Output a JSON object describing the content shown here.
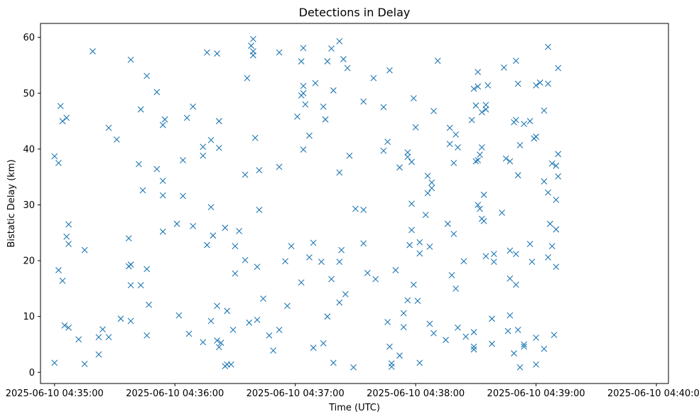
{
  "chart_data": {
    "type": "scatter",
    "title": "Detections in Delay",
    "xlabel": "Time (UTC)",
    "ylabel": "Bistatic Delay (km)",
    "marker": "x",
    "color": "#1f77b4",
    "grid": false,
    "x_is_time": true,
    "xlim": [
      "2025-06-10 04:34:53",
      "2025-06-10 04:40:06"
    ],
    "ylim": [
      -2,
      62.5
    ],
    "x_ticks": [
      "2025-06-10 04:35:00",
      "2025-06-10 04:36:00",
      "2025-06-10 04:37:00",
      "2025-06-10 04:38:00",
      "2025-06-10 04:39:00",
      "2025-06-10 04:40:00"
    ],
    "y_ticks": [
      0,
      10,
      20,
      30,
      40,
      50,
      60
    ],
    "points": [
      {
        "x": "2025-06-10 04:35:00",
        "y": 38.7
      },
      {
        "x": "2025-06-10 04:35:00",
        "y": 1.7
      },
      {
        "x": "2025-06-10 04:35:02",
        "y": 37.5
      },
      {
        "x": "2025-06-10 04:35:02",
        "y": 18.3
      },
      {
        "x": "2025-06-10 04:35:03",
        "y": 47.7
      },
      {
        "x": "2025-06-10 04:35:04",
        "y": 45.0
      },
      {
        "x": "2025-06-10 04:35:04",
        "y": 16.4
      },
      {
        "x": "2025-06-10 04:35:05",
        "y": 8.4
      },
      {
        "x": "2025-06-10 04:35:06",
        "y": 45.6
      },
      {
        "x": "2025-06-10 04:35:06",
        "y": 24.3
      },
      {
        "x": "2025-06-10 04:35:07",
        "y": 23.0
      },
      {
        "x": "2025-06-10 04:35:07",
        "y": 26.5
      },
      {
        "x": "2025-06-10 04:35:07",
        "y": 8.0
      },
      {
        "x": "2025-06-10 04:35:12",
        "y": 5.9
      },
      {
        "x": "2025-06-10 04:35:15",
        "y": 21.9
      },
      {
        "x": "2025-06-10 04:35:15",
        "y": 1.5
      },
      {
        "x": "2025-06-10 04:35:19",
        "y": 57.5
      },
      {
        "x": "2025-06-10 04:35:22",
        "y": 6.3
      },
      {
        "x": "2025-06-10 04:35:22",
        "y": 3.2
      },
      {
        "x": "2025-06-10 04:35:24",
        "y": 7.7
      },
      {
        "x": "2025-06-10 04:35:27",
        "y": 43.8
      },
      {
        "x": "2025-06-10 04:35:27",
        "y": 6.3
      },
      {
        "x": "2025-06-10 04:35:31",
        "y": 41.7
      },
      {
        "x": "2025-06-10 04:35:33",
        "y": 9.6
      },
      {
        "x": "2025-06-10 04:35:37",
        "y": 24.0
      },
      {
        "x": "2025-06-10 04:35:37",
        "y": 19.0
      },
      {
        "x": "2025-06-10 04:35:38",
        "y": 56.0
      },
      {
        "x": "2025-06-10 04:35:38",
        "y": 19.3
      },
      {
        "x": "2025-06-10 04:35:38",
        "y": 15.6
      },
      {
        "x": "2025-06-10 04:35:38",
        "y": 9.2
      },
      {
        "x": "2025-06-10 04:35:42",
        "y": 37.3
      },
      {
        "x": "2025-06-10 04:35:43",
        "y": 47.1
      },
      {
        "x": "2025-06-10 04:35:43",
        "y": 15.6
      },
      {
        "x": "2025-06-10 04:35:44",
        "y": 32.6
      },
      {
        "x": "2025-06-10 04:35:46",
        "y": 53.1
      },
      {
        "x": "2025-06-10 04:35:46",
        "y": 18.5
      },
      {
        "x": "2025-06-10 04:35:46",
        "y": 6.6
      },
      {
        "x": "2025-06-10 04:35:47",
        "y": 12.1
      },
      {
        "x": "2025-06-10 04:35:51",
        "y": 50.2
      },
      {
        "x": "2025-06-10 04:35:51",
        "y": 36.4
      },
      {
        "x": "2025-06-10 04:35:54",
        "y": 44.3
      },
      {
        "x": "2025-06-10 04:35:54",
        "y": 34.3
      },
      {
        "x": "2025-06-10 04:35:54",
        "y": 31.7
      },
      {
        "x": "2025-06-10 04:35:54",
        "y": 25.2
      },
      {
        "x": "2025-06-10 04:35:55",
        "y": 45.3
      },
      {
        "x": "2025-06-10 04:36:01",
        "y": 26.6
      },
      {
        "x": "2025-06-10 04:36:02",
        "y": 10.2
      },
      {
        "x": "2025-06-10 04:36:04",
        "y": 38.0
      },
      {
        "x": "2025-06-10 04:36:04",
        "y": 31.6
      },
      {
        "x": "2025-06-10 04:36:06",
        "y": 45.6
      },
      {
        "x": "2025-06-10 04:36:07",
        "y": 6.9
      },
      {
        "x": "2025-06-10 04:36:09",
        "y": 47.6
      },
      {
        "x": "2025-06-10 04:36:09",
        "y": 26.2
      },
      {
        "x": "2025-06-10 04:36:14",
        "y": 40.4
      },
      {
        "x": "2025-06-10 04:36:14",
        "y": 38.8
      },
      {
        "x": "2025-06-10 04:36:14",
        "y": 5.4
      },
      {
        "x": "2025-06-10 04:36:16",
        "y": 57.3
      },
      {
        "x": "2025-06-10 04:36:16",
        "y": 22.8
      },
      {
        "x": "2025-06-10 04:36:18",
        "y": 41.6
      },
      {
        "x": "2025-06-10 04:36:18",
        "y": 29.6
      },
      {
        "x": "2025-06-10 04:36:18",
        "y": 9.2
      },
      {
        "x": "2025-06-10 04:36:19",
        "y": 24.5
      },
      {
        "x": "2025-06-10 04:36:21",
        "y": 57.1
      },
      {
        "x": "2025-06-10 04:36:21",
        "y": 11.9
      },
      {
        "x": "2025-06-10 04:36:21",
        "y": 5.7
      },
      {
        "x": "2025-06-10 04:36:22",
        "y": 45.0
      },
      {
        "x": "2025-06-10 04:36:22",
        "y": 40.2
      },
      {
        "x": "2025-06-10 04:36:22",
        "y": 4.5
      },
      {
        "x": "2025-06-10 04:36:23",
        "y": 5.3
      },
      {
        "x": "2025-06-10 04:36:25",
        "y": 25.9
      },
      {
        "x": "2025-06-10 04:36:25",
        "y": 1.1
      },
      {
        "x": "2025-06-10 04:36:26",
        "y": 11.0
      },
      {
        "x": "2025-06-10 04:36:26",
        "y": 1.4
      },
      {
        "x": "2025-06-10 04:36:28",
        "y": 1.4
      },
      {
        "x": "2025-06-10 04:36:29",
        "y": 7.6
      },
      {
        "x": "2025-06-10 04:36:30",
        "y": 22.6
      },
      {
        "x": "2025-06-10 04:36:30",
        "y": 17.7
      },
      {
        "x": "2025-06-10 04:36:32",
        "y": 25.3
      },
      {
        "x": "2025-06-10 04:36:35",
        "y": 35.4
      },
      {
        "x": "2025-06-10 04:36:35",
        "y": 20.1
      },
      {
        "x": "2025-06-10 04:36:36",
        "y": 52.7
      },
      {
        "x": "2025-06-10 04:36:37",
        "y": 8.9
      },
      {
        "x": "2025-06-10 04:36:38",
        "y": 58.5
      },
      {
        "x": "2025-06-10 04:36:39",
        "y": 59.7
      },
      {
        "x": "2025-06-10 04:36:39",
        "y": 57.5
      },
      {
        "x": "2025-06-10 04:36:39",
        "y": 56.8
      },
      {
        "x": "2025-06-10 04:36:40",
        "y": 42.0
      },
      {
        "x": "2025-06-10 04:36:41",
        "y": 18.9
      },
      {
        "x": "2025-06-10 04:36:41",
        "y": 9.4
      },
      {
        "x": "2025-06-10 04:36:42",
        "y": 36.2
      },
      {
        "x": "2025-06-10 04:36:42",
        "y": 29.1
      },
      {
        "x": "2025-06-10 04:36:44",
        "y": 13.2
      },
      {
        "x": "2025-06-10 04:36:47",
        "y": 6.6
      },
      {
        "x": "2025-06-10 04:36:49",
        "y": 3.9
      },
      {
        "x": "2025-06-10 04:36:52",
        "y": 57.3
      },
      {
        "x": "2025-06-10 04:36:52",
        "y": 36.8
      },
      {
        "x": "2025-06-10 04:36:52",
        "y": 7.6
      },
      {
        "x": "2025-06-10 04:36:55",
        "y": 19.9
      },
      {
        "x": "2025-06-10 04:36:56",
        "y": 11.9
      },
      {
        "x": "2025-06-10 04:36:58",
        "y": 22.6
      },
      {
        "x": "2025-06-10 04:37:01",
        "y": 45.8
      },
      {
        "x": "2025-06-10 04:37:03",
        "y": 55.7
      },
      {
        "x": "2025-06-10 04:37:03",
        "y": 49.6
      },
      {
        "x": "2025-06-10 04:37:03",
        "y": 16.1
      },
      {
        "x": "2025-06-10 04:37:04",
        "y": 58.1
      },
      {
        "x": "2025-06-10 04:37:04",
        "y": 50.0
      },
      {
        "x": "2025-06-10 04:37:04",
        "y": 39.9
      },
      {
        "x": "2025-06-10 04:37:04",
        "y": 51.3
      },
      {
        "x": "2025-06-10 04:37:05",
        "y": 48.0
      },
      {
        "x": "2025-06-10 04:37:07",
        "y": 42.4
      },
      {
        "x": "2025-06-10 04:37:07",
        "y": 20.6
      },
      {
        "x": "2025-06-10 04:37:09",
        "y": 23.2
      },
      {
        "x": "2025-06-10 04:37:09",
        "y": 4.4
      },
      {
        "x": "2025-06-10 04:37:10",
        "y": 51.8
      },
      {
        "x": "2025-06-10 04:37:13",
        "y": 19.8
      },
      {
        "x": "2025-06-10 04:37:14",
        "y": 47.6
      },
      {
        "x": "2025-06-10 04:37:14",
        "y": 5.2
      },
      {
        "x": "2025-06-10 04:37:15",
        "y": 45.3
      },
      {
        "x": "2025-06-10 04:37:16",
        "y": 55.7
      },
      {
        "x": "2025-06-10 04:37:16",
        "y": 10.0
      },
      {
        "x": "2025-06-10 04:37:18",
        "y": 58.0
      },
      {
        "x": "2025-06-10 04:37:18",
        "y": 16.7
      },
      {
        "x": "2025-06-10 04:37:19",
        "y": 50.5
      },
      {
        "x": "2025-06-10 04:37:19",
        "y": 1.7
      },
      {
        "x": "2025-06-10 04:37:22",
        "y": 59.3
      },
      {
        "x": "2025-06-10 04:37:22",
        "y": 19.8
      },
      {
        "x": "2025-06-10 04:37:22",
        "y": 12.5
      },
      {
        "x": "2025-06-10 04:37:22",
        "y": 35.8
      },
      {
        "x": "2025-06-10 04:37:23",
        "y": 21.9
      },
      {
        "x": "2025-06-10 04:37:24",
        "y": 56.1
      },
      {
        "x": "2025-06-10 04:37:25",
        "y": 14.0
      },
      {
        "x": "2025-06-10 04:37:26",
        "y": 54.5
      },
      {
        "x": "2025-06-10 04:37:27",
        "y": 38.8
      },
      {
        "x": "2025-06-10 04:37:29",
        "y": 0.9
      },
      {
        "x": "2025-06-10 04:37:30",
        "y": 29.3
      },
      {
        "x": "2025-06-10 04:37:34",
        "y": 48.5
      },
      {
        "x": "2025-06-10 04:37:34",
        "y": 29.1
      },
      {
        "x": "2025-06-10 04:37:34",
        "y": 23.1
      },
      {
        "x": "2025-06-10 04:37:36",
        "y": 17.8
      },
      {
        "x": "2025-06-10 04:37:39",
        "y": 52.7
      },
      {
        "x": "2025-06-10 04:37:40",
        "y": 16.7
      },
      {
        "x": "2025-06-10 04:37:44",
        "y": 47.5
      },
      {
        "x": "2025-06-10 04:37:44",
        "y": 39.7
      },
      {
        "x": "2025-06-10 04:37:46",
        "y": 41.3
      },
      {
        "x": "2025-06-10 04:37:46",
        "y": 9.0
      },
      {
        "x": "2025-06-10 04:37:47",
        "y": 54.1
      },
      {
        "x": "2025-06-10 04:37:47",
        "y": 4.6
      },
      {
        "x": "2025-06-10 04:37:48",
        "y": 1.6
      },
      {
        "x": "2025-06-10 04:37:48",
        "y": 1.0
      },
      {
        "x": "2025-06-10 04:37:50",
        "y": 18.3
      },
      {
        "x": "2025-06-10 04:37:52",
        "y": 36.7
      },
      {
        "x": "2025-06-10 04:37:52",
        "y": 3.0
      },
      {
        "x": "2025-06-10 04:37:54",
        "y": 10.6
      },
      {
        "x": "2025-06-10 04:37:54",
        "y": 8.1
      },
      {
        "x": "2025-06-10 04:37:56",
        "y": 39.4
      },
      {
        "x": "2025-06-10 04:37:56",
        "y": 38.6
      },
      {
        "x": "2025-06-10 04:37:56",
        "y": 12.9
      },
      {
        "x": "2025-06-10 04:37:57",
        "y": 22.8
      },
      {
        "x": "2025-06-10 04:37:58",
        "y": 37.7
      },
      {
        "x": "2025-06-10 04:37:58",
        "y": 30.2
      },
      {
        "x": "2025-06-10 04:37:58",
        "y": 25.5
      },
      {
        "x": "2025-06-10 04:37:59",
        "y": 49.1
      },
      {
        "x": "2025-06-10 04:37:59",
        "y": 15.7
      },
      {
        "x": "2025-06-10 04:38:00",
        "y": 43.9
      },
      {
        "x": "2025-06-10 04:38:01",
        "y": 12.8
      },
      {
        "x": "2025-06-10 04:38:02",
        "y": 23.3
      },
      {
        "x": "2025-06-10 04:38:02",
        "y": 21.3
      },
      {
        "x": "2025-06-10 04:38:02",
        "y": 1.7
      },
      {
        "x": "2025-06-10 04:38:05",
        "y": 28.2
      },
      {
        "x": "2025-06-10 04:38:06",
        "y": 35.2
      },
      {
        "x": "2025-06-10 04:38:06",
        "y": 32.1
      },
      {
        "x": "2025-06-10 04:38:07",
        "y": 22.5
      },
      {
        "x": "2025-06-10 04:38:07",
        "y": 8.7
      },
      {
        "x": "2025-06-10 04:38:08",
        "y": 34.0
      },
      {
        "x": "2025-06-10 04:38:08",
        "y": 33.0
      },
      {
        "x": "2025-06-10 04:38:09",
        "y": 46.8
      },
      {
        "x": "2025-06-10 04:38:09",
        "y": 7.0
      },
      {
        "x": "2025-06-10 04:38:11",
        "y": 55.8
      },
      {
        "x": "2025-06-10 04:38:15",
        "y": 5.8
      },
      {
        "x": "2025-06-10 04:38:16",
        "y": 26.6
      },
      {
        "x": "2025-06-10 04:38:17",
        "y": 43.8
      },
      {
        "x": "2025-06-10 04:38:17",
        "y": 40.9
      },
      {
        "x": "2025-06-10 04:38:18",
        "y": 17.4
      },
      {
        "x": "2025-06-10 04:38:19",
        "y": 37.5
      },
      {
        "x": "2025-06-10 04:38:19",
        "y": 24.8
      },
      {
        "x": "2025-06-10 04:38:20",
        "y": 42.6
      },
      {
        "x": "2025-06-10 04:38:20",
        "y": 15.0
      },
      {
        "x": "2025-06-10 04:38:21",
        "y": 40.3
      },
      {
        "x": "2025-06-10 04:38:21",
        "y": 8.0
      },
      {
        "x": "2025-06-10 04:38:24",
        "y": 19.9
      },
      {
        "x": "2025-06-10 04:38:25",
        "y": 6.4
      },
      {
        "x": "2025-06-10 04:38:28",
        "y": 45.2
      },
      {
        "x": "2025-06-10 04:38:29",
        "y": 50.8
      },
      {
        "x": "2025-06-10 04:38:29",
        "y": 7.2
      },
      {
        "x": "2025-06-10 04:38:29",
        "y": 4.6
      },
      {
        "x": "2025-06-10 04:38:29",
        "y": 4.1
      },
      {
        "x": "2025-06-10 04:38:30",
        "y": 47.8
      },
      {
        "x": "2025-06-10 04:38:30",
        "y": 37.8
      },
      {
        "x": "2025-06-10 04:38:31",
        "y": 51.2
      },
      {
        "x": "2025-06-10 04:38:31",
        "y": 38.0
      },
      {
        "x": "2025-06-10 04:38:31",
        "y": 30.0
      },
      {
        "x": "2025-06-10 04:38:31",
        "y": 53.8
      },
      {
        "x": "2025-06-10 04:38:32",
        "y": 39.0
      },
      {
        "x": "2025-06-10 04:38:32",
        "y": 29.3
      },
      {
        "x": "2025-06-10 04:38:33",
        "y": 46.6
      },
      {
        "x": "2025-06-10 04:38:33",
        "y": 40.3
      },
      {
        "x": "2025-06-10 04:38:33",
        "y": 27.5
      },
      {
        "x": "2025-06-10 04:38:34",
        "y": 31.8
      },
      {
        "x": "2025-06-10 04:38:34",
        "y": 27.1
      },
      {
        "x": "2025-06-10 04:38:35",
        "y": 47.9
      },
      {
        "x": "2025-06-10 04:38:35",
        "y": 47.1
      },
      {
        "x": "2025-06-10 04:38:35",
        "y": 20.8
      },
      {
        "x": "2025-06-10 04:38:36",
        "y": 51.4
      },
      {
        "x": "2025-06-10 04:38:38",
        "y": 9.6
      },
      {
        "x": "2025-06-10 04:38:38",
        "y": 5.1
      },
      {
        "x": "2025-06-10 04:38:39",
        "y": 21.2
      },
      {
        "x": "2025-06-10 04:38:39",
        "y": 19.8
      },
      {
        "x": "2025-06-10 04:38:43",
        "y": 28.6
      },
      {
        "x": "2025-06-10 04:38:44",
        "y": 54.6
      },
      {
        "x": "2025-06-10 04:38:45",
        "y": 38.3
      },
      {
        "x": "2025-06-10 04:38:46",
        "y": 7.4
      },
      {
        "x": "2025-06-10 04:38:47",
        "y": 37.8
      },
      {
        "x": "2025-06-10 04:38:47",
        "y": 21.8
      },
      {
        "x": "2025-06-10 04:38:47",
        "y": 16.8
      },
      {
        "x": "2025-06-10 04:38:47",
        "y": 10.2
      },
      {
        "x": "2025-06-10 04:38:49",
        "y": 44.8
      },
      {
        "x": "2025-06-10 04:38:49",
        "y": 3.4
      },
      {
        "x": "2025-06-10 04:38:50",
        "y": 55.8
      },
      {
        "x": "2025-06-10 04:38:50",
        "y": 45.2
      },
      {
        "x": "2025-06-10 04:38:50",
        "y": 21.2
      },
      {
        "x": "2025-06-10 04:38:50",
        "y": 15.7
      },
      {
        "x": "2025-06-10 04:38:51",
        "y": 51.7
      },
      {
        "x": "2025-06-10 04:38:51",
        "y": 35.3
      },
      {
        "x": "2025-06-10 04:38:51",
        "y": 7.6
      },
      {
        "x": "2025-06-10 04:38:52",
        "y": 40.7
      },
      {
        "x": "2025-06-10 04:38:52",
        "y": 0.9
      },
      {
        "x": "2025-06-10 04:38:54",
        "y": 44.5
      },
      {
        "x": "2025-06-10 04:38:54",
        "y": 4.6
      },
      {
        "x": "2025-06-10 04:38:54",
        "y": 5.0
      },
      {
        "x": "2025-06-10 04:38:57",
        "y": 45.0
      },
      {
        "x": "2025-06-10 04:38:57",
        "y": 23.0
      },
      {
        "x": "2025-06-10 04:38:58",
        "y": 19.8
      },
      {
        "x": "2025-06-10 04:38:59",
        "y": 41.9
      },
      {
        "x": "2025-06-10 04:39:00",
        "y": 51.4
      },
      {
        "x": "2025-06-10 04:39:00",
        "y": 42.2
      },
      {
        "x": "2025-06-10 04:39:00",
        "y": 6.2
      },
      {
        "x": "2025-06-10 04:39:00",
        "y": 1.4
      },
      {
        "x": "2025-06-10 04:39:02",
        "y": 51.9
      },
      {
        "x": "2025-06-10 04:39:04",
        "y": 46.9
      },
      {
        "x": "2025-06-10 04:39:04",
        "y": 34.2
      },
      {
        "x": "2025-06-10 04:39:04",
        "y": 4.2
      },
      {
        "x": "2025-06-10 04:39:06",
        "y": 58.3
      },
      {
        "x": "2025-06-10 04:39:06",
        "y": 51.7
      },
      {
        "x": "2025-06-10 04:39:06",
        "y": 32.2
      },
      {
        "x": "2025-06-10 04:39:06",
        "y": 20.6
      },
      {
        "x": "2025-06-10 04:39:07",
        "y": 26.6
      },
      {
        "x": "2025-06-10 04:39:08",
        "y": 22.6
      },
      {
        "x": "2025-06-10 04:39:08",
        "y": 37.4
      },
      {
        "x": "2025-06-10 04:39:09",
        "y": 6.7
      },
      {
        "x": "2025-06-10 04:39:10",
        "y": 37.0
      },
      {
        "x": "2025-06-10 04:39:10",
        "y": 30.9
      },
      {
        "x": "2025-06-10 04:39:10",
        "y": 25.6
      },
      {
        "x": "2025-06-10 04:39:10",
        "y": 18.9
      },
      {
        "x": "2025-06-10 04:39:11",
        "y": 54.5
      },
      {
        "x": "2025-06-10 04:39:11",
        "y": 39.1
      },
      {
        "x": "2025-06-10 04:39:11",
        "y": 35.1
      }
    ]
  }
}
